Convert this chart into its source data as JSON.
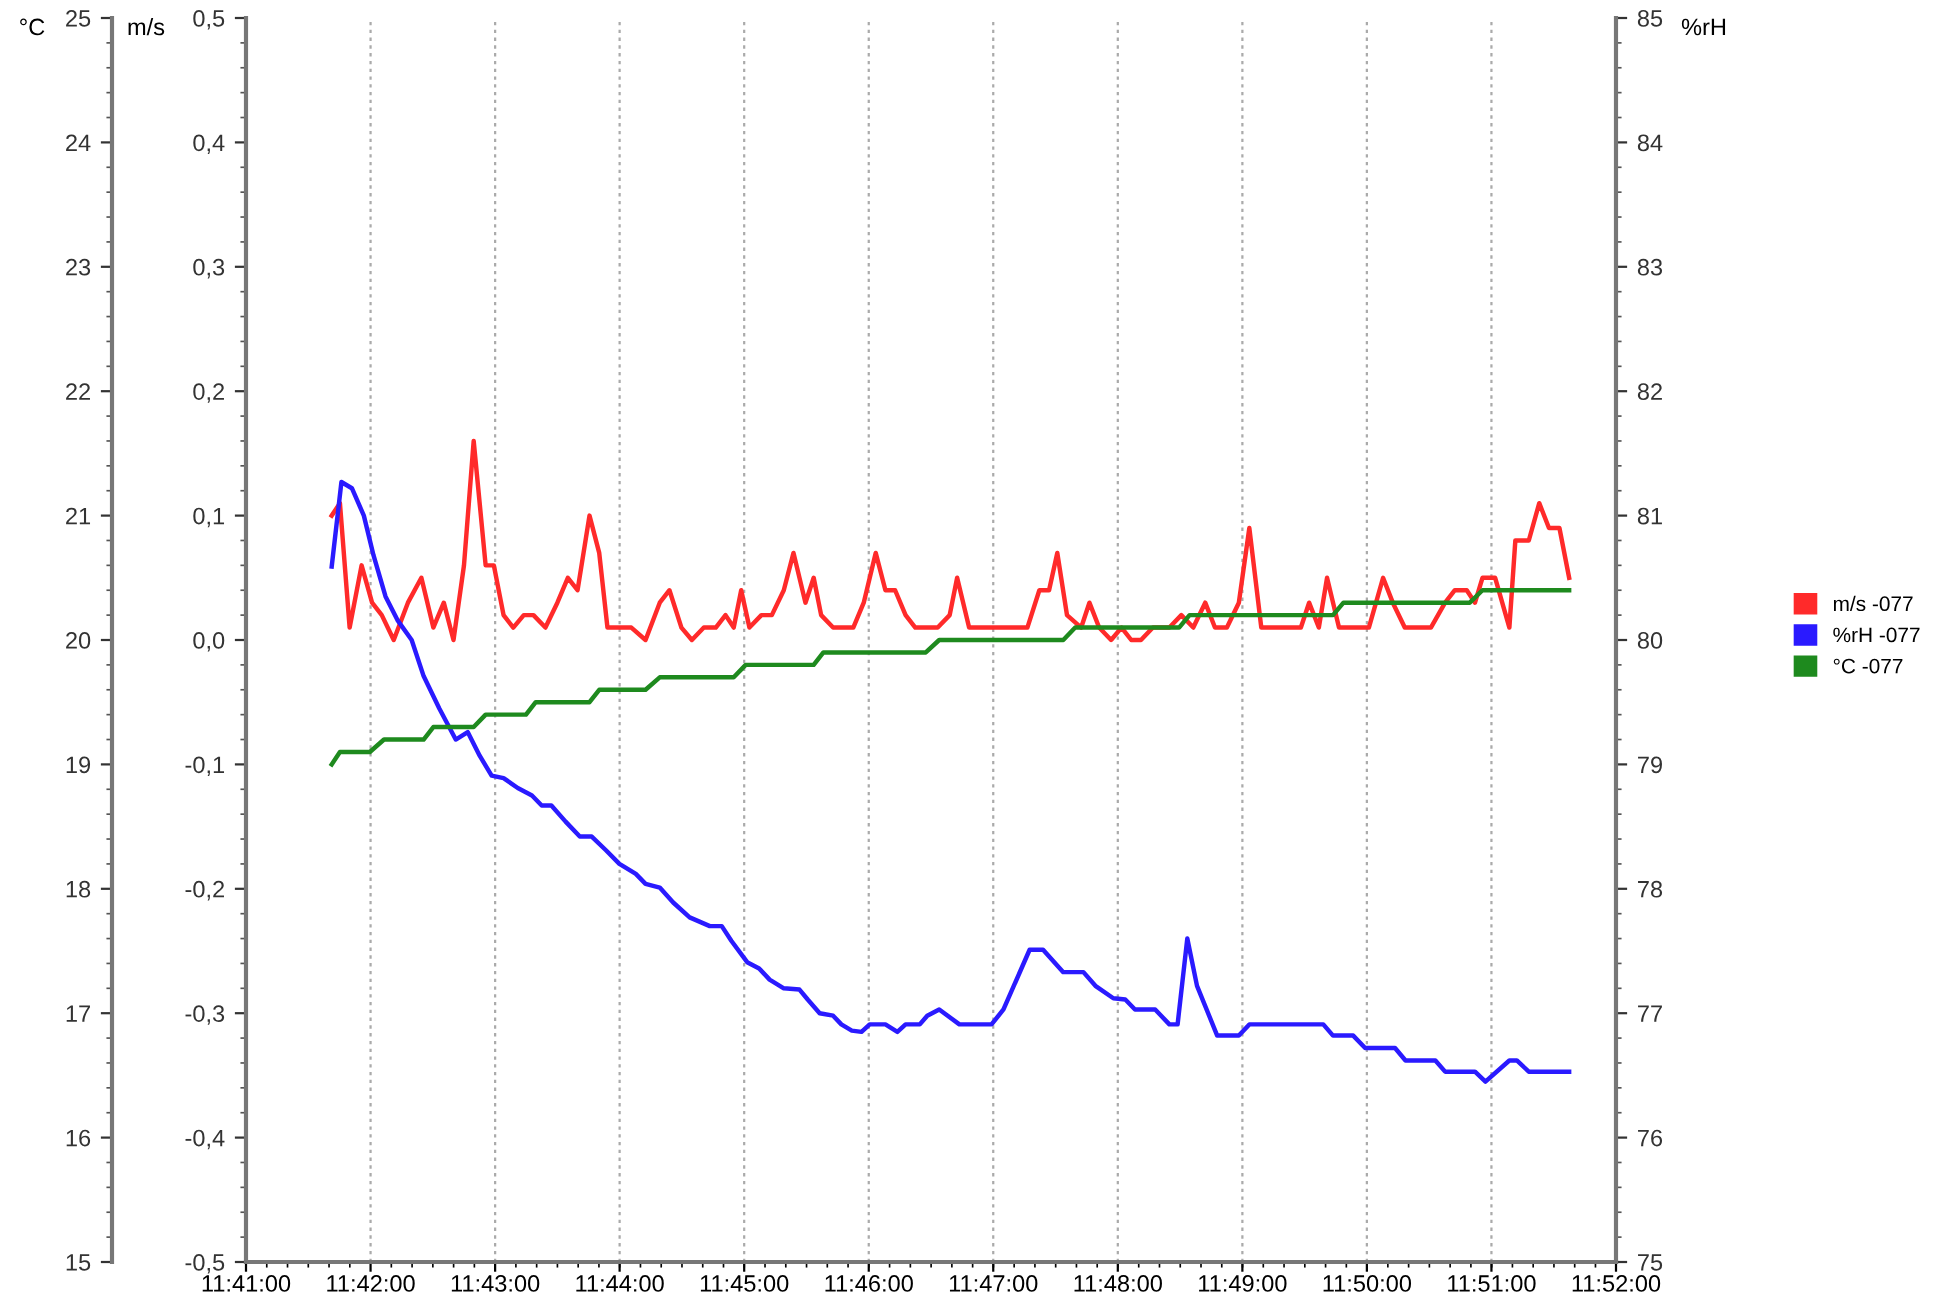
{
  "chart_data": {
    "type": "line",
    "ylabel": "m/s",
    "y2label": "%rH",
    "y3label": "°C",
    "xlim": [
      11.68333,
      11.86667
    ],
    "xticks": [
      {
        "value": 11.68333,
        "label": "11:41:00"
      },
      {
        "value": 11.7,
        "label": "11:42:00"
      },
      {
        "value": 11.71667,
        "label": "11:43:00"
      },
      {
        "value": 11.73333,
        "label": "11:44:00"
      },
      {
        "value": 11.75,
        "label": "11:45:00"
      },
      {
        "value": 11.76667,
        "label": "11:46:00"
      },
      {
        "value": 11.78333,
        "label": "11:47:00"
      },
      {
        "value": 11.8,
        "label": "11:48:00"
      },
      {
        "value": 11.81667,
        "label": "11:49:00"
      },
      {
        "value": 11.83333,
        "label": "11:50:00"
      },
      {
        "value": 11.85,
        "label": "11:51:00"
      },
      {
        "value": 11.86667,
        "label": "11:52:00"
      }
    ],
    "ylim": [
      -0.5,
      0.5
    ],
    "yticks": [
      {
        "value": -0.5,
        "label": "-0,5"
      },
      {
        "value": -0.4,
        "label": "-0,4"
      },
      {
        "value": -0.3,
        "label": "-0,3"
      },
      {
        "value": -0.2,
        "label": "-0,2"
      },
      {
        "value": -0.1,
        "label": "-0,1"
      },
      {
        "value": 0.0,
        "label": "0,0"
      },
      {
        "value": 0.1,
        "label": "0,1"
      },
      {
        "value": 0.2,
        "label": "0,2"
      },
      {
        "value": 0.3,
        "label": "0,3"
      },
      {
        "value": 0.4,
        "label": "0,4"
      },
      {
        "value": 0.5,
        "label": "0,5"
      }
    ],
    "y2lim": [
      75,
      85
    ],
    "y2ticks": [
      75,
      76,
      77,
      78,
      79,
      80,
      81,
      82,
      83,
      84,
      85
    ],
    "y3lim": [
      15,
      25
    ],
    "y3ticks": [
      15,
      16,
      17,
      18,
      19,
      20,
      21,
      22,
      23,
      24,
      25
    ],
    "grid": "x",
    "legend": "right",
    "series": [
      {
        "name": "m/s -077",
        "color": "#ff2a2a",
        "x": [
          11.6948,
          11.6959,
          11.6972,
          11.6988,
          11.7002,
          11.7015,
          11.7031,
          11.705,
          11.7068,
          11.7084,
          11.7098,
          11.7111,
          11.7125,
          11.7138,
          11.7154,
          11.7165,
          11.7178,
          11.7191,
          11.7205,
          11.7218,
          11.7234,
          11.725,
          11.7264,
          11.7277,
          11.7293,
          11.7306,
          11.7317,
          11.7349,
          11.7368,
          11.7387,
          11.74,
          11.7416,
          11.743,
          11.7446,
          11.7462,
          11.7475,
          11.7486,
          11.7496,
          11.7507,
          11.7523,
          11.7537,
          11.7553,
          11.7566,
          11.7582,
          11.7593,
          11.7603,
          11.7619,
          11.7646,
          11.766,
          11.7676,
          11.7689,
          11.7702,
          11.7716,
          11.7729,
          11.7759,
          11.7775,
          11.7785,
          11.7801,
          11.7815,
          11.7831,
          11.7841,
          11.7863,
          11.7879,
          11.7895,
          11.7908,
          11.7919,
          11.7932,
          11.7951,
          11.7962,
          11.7975,
          11.7991,
          11.8005,
          11.8018,
          11.8031,
          11.8047,
          11.8069,
          11.8085,
          11.8101,
          11.8117,
          11.813,
          11.8146,
          11.8162,
          11.8176,
          11.8192,
          11.8245,
          11.8256,
          11.8269,
          11.828,
          11.8296,
          11.8336,
          11.8355,
          11.8368,
          11.8384,
          11.8419,
          11.8438,
          11.8451,
          11.8467,
          11.8478,
          11.8488,
          11.8505,
          11.8524,
          11.8532,
          11.855,
          11.8564,
          11.8577,
          11.8591,
          11.8604
        ],
        "values": [
          0.1,
          0.11,
          0.01,
          0.06,
          0.03,
          0.02,
          0.0,
          0.03,
          0.05,
          0.01,
          0.03,
          0.0,
          0.06,
          0.16,
          0.06,
          0.06,
          0.02,
          0.01,
          0.02,
          0.02,
          0.01,
          0.03,
          0.05,
          0.04,
          0.1,
          0.07,
          0.01,
          0.01,
          0.0,
          0.03,
          0.04,
          0.01,
          0.0,
          0.01,
          0.01,
          0.02,
          0.01,
          0.04,
          0.01,
          0.02,
          0.02,
          0.04,
          0.07,
          0.03,
          0.05,
          0.02,
          0.01,
          0.01,
          0.03,
          0.07,
          0.04,
          0.04,
          0.02,
          0.01,
          0.01,
          0.02,
          0.05,
          0.01,
          0.01,
          0.01,
          0.01,
          0.01,
          0.01,
          0.04,
          0.04,
          0.07,
          0.02,
          0.01,
          0.03,
          0.01,
          0.0,
          0.01,
          0.0,
          0.0,
          0.01,
          0.01,
          0.02,
          0.01,
          0.03,
          0.01,
          0.01,
          0.03,
          0.09,
          0.01,
          0.01,
          0.03,
          0.01,
          0.05,
          0.01,
          0.01,
          0.05,
          0.03,
          0.01,
          0.01,
          0.03,
          0.04,
          0.04,
          0.03,
          0.05,
          0.05,
          0.01,
          0.08,
          0.08,
          0.11,
          0.09,
          0.09,
          0.05
        ]
      },
      {
        "name": "%rH -077",
        "color": "#2a1aff",
        "axis": "y2",
        "x": [
          11.6948,
          11.6961,
          11.6975,
          11.6991,
          11.7004,
          11.702,
          11.7036,
          11.7055,
          11.7071,
          11.7092,
          11.7114,
          11.713,
          11.7146,
          11.7162,
          11.7178,
          11.7197,
          11.7216,
          11.7229,
          11.7242,
          11.7261,
          11.728,
          11.7296,
          11.7315,
          11.7333,
          11.7355,
          11.7368,
          11.7387,
          11.7405,
          11.7427,
          11.7454,
          11.747,
          11.7483,
          11.7504,
          11.752,
          11.7534,
          11.7553,
          11.7574,
          11.7585,
          11.7601,
          11.7619,
          11.763,
          11.7644,
          11.7657,
          11.7668,
          11.7689,
          11.7705,
          11.7716,
          11.7735,
          11.7745,
          11.7761,
          11.7788,
          11.7831,
          11.7847,
          11.7882,
          11.79,
          11.7927,
          11.7954,
          11.797,
          11.7994,
          11.801,
          11.8023,
          11.805,
          11.8069,
          11.808,
          11.8093,
          11.8106,
          11.8133,
          11.8162,
          11.8176,
          11.8275,
          11.8288,
          11.8315,
          11.8331,
          11.8371,
          11.8385,
          11.8425,
          11.8438,
          11.8478,
          11.8492,
          11.8524,
          11.8534,
          11.855,
          11.8604
        ],
        "values": [
          80.59,
          81.27,
          81.22,
          81.0,
          80.68,
          80.35,
          80.16,
          80.0,
          79.71,
          79.45,
          79.2,
          79.26,
          79.07,
          78.91,
          78.89,
          78.81,
          78.75,
          78.67,
          78.67,
          78.54,
          78.42,
          78.42,
          78.31,
          78.2,
          78.12,
          78.04,
          78.01,
          77.89,
          77.77,
          77.7,
          77.7,
          77.58,
          77.41,
          77.36,
          77.27,
          77.2,
          77.19,
          77.11,
          77.0,
          76.98,
          76.91,
          76.86,
          76.85,
          76.91,
          76.91,
          76.85,
          76.91,
          76.91,
          76.98,
          77.03,
          76.91,
          76.91,
          77.03,
          77.51,
          77.51,
          77.33,
          77.33,
          77.22,
          77.12,
          77.11,
          77.03,
          77.03,
          76.91,
          76.91,
          77.6,
          77.22,
          76.82,
          76.82,
          76.91,
          76.91,
          76.82,
          76.82,
          76.72,
          76.72,
          76.62,
          76.62,
          76.53,
          76.53,
          76.45,
          76.62,
          76.62,
          76.53,
          76.53
        ]
      },
      {
        "name": "°C -077",
        "color": "#1e8a1e",
        "axis": "y3",
        "x": [
          11.6948,
          11.6959,
          11.6999,
          11.7018,
          11.7071,
          11.7084,
          11.7138,
          11.7154,
          11.7208,
          11.7221,
          11.7293,
          11.7306,
          11.7368,
          11.7387,
          11.7486,
          11.7502,
          11.7593,
          11.7606,
          11.7743,
          11.7761,
          11.7927,
          11.7943,
          11.8082,
          11.8096,
          11.8288,
          11.8302,
          11.8471,
          11.8488,
          11.8604
        ],
        "values": [
          19.0,
          19.1,
          19.1,
          19.2,
          19.2,
          19.3,
          19.3,
          19.4,
          19.4,
          19.5,
          19.5,
          19.6,
          19.6,
          19.7,
          19.7,
          19.8,
          19.8,
          19.9,
          19.9,
          20.0,
          20.0,
          20.1,
          20.1,
          20.2,
          20.2,
          20.3,
          20.3,
          20.4,
          20.4
        ]
      }
    ]
  }
}
